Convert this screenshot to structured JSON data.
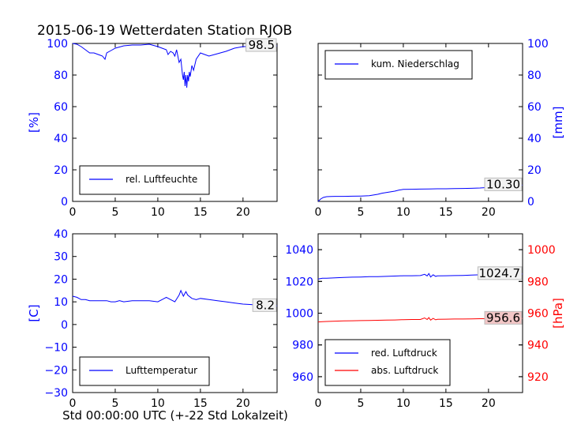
{
  "figure": {
    "title": "2015-06-19 Wetterdaten Station RJOB",
    "xlabel": "Std 00:00:00 UTC (+-22 Std Lokalzeit)"
  },
  "colors": {
    "blue": "#0000ff",
    "red": "#ff0000",
    "axis": "#000000"
  },
  "chart_data": [
    {
      "type": "line",
      "panel": "top-left",
      "ylabel": "[%]",
      "ylabel_side": "left",
      "ylim": [
        0,
        100
      ],
      "yticks": [
        0,
        20,
        40,
        60,
        80,
        100
      ],
      "xlim": [
        0,
        24
      ],
      "xticks": [
        0,
        5,
        10,
        15,
        20
      ],
      "legend": "lower-left",
      "series": [
        {
          "name": "rel. Luftfeuchte",
          "color": "#0000ff",
          "x": [
            0,
            0.5,
            1,
            1.5,
            2,
            2.5,
            3,
            3.5,
            3.8,
            4,
            4.5,
            5,
            6,
            7,
            8,
            9,
            10,
            10.5,
            11,
            11.2,
            11.5,
            11.8,
            12,
            12.2,
            12.5,
            12.7,
            12.9,
            13,
            13.1,
            13.2,
            13.3,
            13.4,
            13.5,
            13.6,
            13.7,
            13.8,
            14,
            14.2,
            14.5,
            15,
            15.5,
            16,
            17,
            18,
            19,
            20,
            21,
            22,
            23,
            24
          ],
          "y": [
            100,
            99.5,
            98,
            96,
            94,
            94,
            93,
            92,
            90,
            94,
            95.5,
            97,
            98.5,
            99,
            99,
            99.5,
            98,
            97,
            96,
            93,
            95,
            94,
            92,
            96,
            88,
            90,
            80,
            77,
            82,
            73,
            80,
            72,
            80,
            76,
            82,
            79,
            86,
            83,
            90,
            94,
            93,
            92,
            93.5,
            95,
            97,
            98,
            98,
            98.5,
            98.5,
            98.5
          ]
        }
      ],
      "annotation": "98.5"
    },
    {
      "type": "line",
      "panel": "top-right",
      "ylabel": "[mm]",
      "ylabel_side": "right",
      "ylim": [
        0,
        100
      ],
      "yticks": [
        0,
        20,
        40,
        60,
        80,
        100
      ],
      "xlim": [
        0,
        24
      ],
      "xticks": [
        0,
        5,
        10,
        15,
        20
      ],
      "legend": "upper-left",
      "series": [
        {
          "name": "kum. Niederschlag",
          "color": "#0000ff",
          "x": [
            0,
            0.3,
            0.6,
            1,
            1.5,
            2,
            3,
            4,
            5,
            6,
            7,
            7.5,
            8,
            9,
            9.5,
            10,
            11,
            12,
            13,
            14,
            15,
            16,
            17,
            18,
            19,
            20,
            21,
            22,
            23,
            24
          ],
          "y": [
            0,
            1.5,
            2.5,
            3.0,
            3.1,
            3.2,
            3.2,
            3.3,
            3.4,
            3.6,
            4.5,
            5.2,
            5.6,
            6.5,
            7.2,
            7.6,
            7.7,
            7.8,
            7.9,
            8.0,
            8.0,
            8.1,
            8.2,
            8.3,
            8.5,
            8.9,
            9.3,
            9.8,
            10.1,
            10.3
          ]
        }
      ],
      "annotation": "10.30"
    },
    {
      "type": "line",
      "panel": "bottom-left",
      "ylabel": "[C]",
      "ylabel_side": "left",
      "ylim": [
        -30,
        40
      ],
      "yticks": [
        -30,
        -20,
        -10,
        0,
        10,
        20,
        30,
        40
      ],
      "xlim": [
        0,
        24
      ],
      "xticks": [
        0,
        5,
        10,
        15,
        20
      ],
      "legend": "lower-left",
      "series": [
        {
          "name": "Lufttemperatur",
          "color": "#0000ff",
          "x": [
            0,
            0.5,
            1,
            1.5,
            2,
            3,
            4,
            4.5,
            5,
            5.5,
            6,
            7,
            8,
            9,
            10,
            10.5,
            11,
            11.5,
            12,
            12.5,
            12.7,
            13,
            13.3,
            13.5,
            14,
            14.5,
            15,
            16,
            17,
            18,
            19,
            20,
            21,
            22,
            23,
            24
          ],
          "y": [
            12.5,
            12,
            11,
            11,
            10.5,
            10.5,
            10.5,
            10,
            10,
            10.5,
            10,
            10.5,
            10.5,
            10.5,
            10,
            11,
            12,
            11,
            10,
            13,
            15,
            12.5,
            14.5,
            13,
            11.5,
            11,
            11.5,
            11,
            10.5,
            10,
            9.5,
            9,
            8.8,
            8.3,
            8.2,
            8.2
          ]
        }
      ],
      "annotation": "8.2"
    },
    {
      "type": "line",
      "panel": "bottom-right",
      "ylabel": "[hPa]",
      "ylabel_side": "right",
      "ylim_left": [
        950,
        1050
      ],
      "yticks_left": [
        960,
        980,
        1000,
        1020,
        1040
      ],
      "ylim_right": [
        910,
        1010
      ],
      "yticks_right": [
        920,
        940,
        960,
        980,
        1000
      ],
      "xlim": [
        0,
        24
      ],
      "xticks": [
        0,
        5,
        10,
        15,
        20
      ],
      "legend": "lower-left",
      "series": [
        {
          "name": "red. Luftdruck",
          "color": "#0000ff",
          "axis": "left",
          "x": [
            0,
            0.5,
            1,
            2,
            3,
            4,
            5,
            6,
            7,
            8,
            9,
            10,
            11,
            12,
            12.5,
            12.8,
            13,
            13.2,
            13.5,
            13.8,
            14,
            15,
            16,
            17,
            18,
            19,
            20,
            21,
            22,
            23,
            24
          ],
          "y": [
            1021.5,
            1022,
            1022,
            1022.3,
            1022.5,
            1022.7,
            1022.8,
            1023,
            1023,
            1023.2,
            1023.4,
            1023.6,
            1023.6,
            1023.7,
            1024.5,
            1023.5,
            1025,
            1022.8,
            1024.2,
            1023.2,
            1023.5,
            1023.6,
            1023.7,
            1023.8,
            1024,
            1024.2,
            1024.4,
            1024.6,
            1024.7,
            1024.7,
            1024.7
          ]
        },
        {
          "name": "abs. Luftdruck",
          "color": "#ff0000",
          "axis": "right",
          "x": [
            0,
            0.5,
            1,
            2,
            3,
            4,
            5,
            6,
            7,
            8,
            9,
            10,
            11,
            12,
            12.5,
            12.8,
            13,
            13.2,
            13.5,
            13.8,
            14,
            15,
            16,
            17,
            18,
            19,
            20,
            21,
            22,
            23,
            24
          ],
          "y": [
            954.5,
            954.7,
            954.8,
            955,
            955.1,
            955.2,
            955.3,
            955.4,
            955.5,
            955.6,
            955.7,
            955.9,
            956.0,
            956.0,
            957.0,
            956.0,
            957.2,
            955.6,
            956.7,
            955.8,
            956.1,
            956.2,
            956.3,
            956.3,
            956.4,
            956.5,
            956.5,
            956.6,
            956.6,
            956.6,
            956.6
          ]
        }
      ],
      "annotations": [
        "1024.7",
        "956.6"
      ]
    }
  ]
}
